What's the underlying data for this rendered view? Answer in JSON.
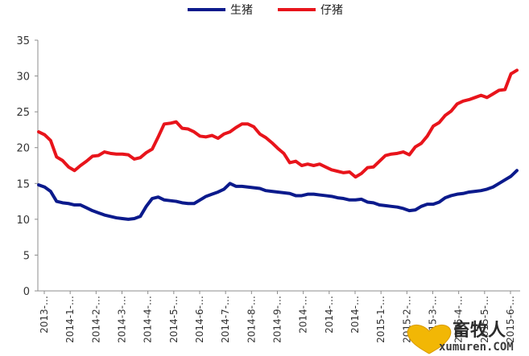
{
  "chart_data": {
    "type": "line",
    "title": "",
    "xlabel": "",
    "ylabel": "",
    "ylim": [
      0,
      35
    ],
    "yticks": [
      0,
      5,
      10,
      15,
      20,
      25,
      30,
      35
    ],
    "grid": false,
    "legend_position": "top",
    "x_tick_labels": [
      "2013-…",
      "2014-1-…",
      "2014-2-…",
      "2014-3-…",
      "2014-4-…",
      "2014-5-…",
      "2014-6-…",
      "2014-7-…",
      "2014-8-…",
      "2014-9-…",
      "2014-…",
      "2014-…",
      "2014-…",
      "2015-1-…",
      "2015-2-…",
      "2015-3-…",
      "2015-4-…",
      "2015-5-…",
      "2015-6-…"
    ],
    "series": [
      {
        "name": "生猪",
        "color": "#0b1a8c",
        "values": [
          14.8,
          14.5,
          13.9,
          12.5,
          12.3,
          12.2,
          12.0,
          12.0,
          11.6,
          11.2,
          10.9,
          10.6,
          10.4,
          10.2,
          10.1,
          10.0,
          10.1,
          10.4,
          11.8,
          12.9,
          13.1,
          12.7,
          12.6,
          12.5,
          12.3,
          12.2,
          12.2,
          12.7,
          13.2,
          13.5,
          13.8,
          14.2,
          15.0,
          14.6,
          14.6,
          14.5,
          14.4,
          14.3,
          14.0,
          13.9,
          13.8,
          13.7,
          13.6,
          13.3,
          13.3,
          13.5,
          13.5,
          13.4,
          13.3,
          13.2,
          13.0,
          12.9,
          12.7,
          12.7,
          12.8,
          12.4,
          12.3,
          12.0,
          11.9,
          11.8,
          11.7,
          11.5,
          11.2,
          11.3,
          11.8,
          12.1,
          12.1,
          12.4,
          13.0,
          13.3,
          13.5,
          13.6,
          13.8,
          13.9,
          14.0,
          14.2,
          14.5,
          15.0,
          15.5,
          16.0,
          16.8
        ]
      },
      {
        "name": "仔猪",
        "color": "#e8141b",
        "values": [
          22.2,
          21.8,
          21.0,
          18.7,
          18.2,
          17.3,
          16.8,
          17.5,
          18.1,
          18.8,
          18.9,
          19.4,
          19.2,
          19.1,
          19.1,
          19.0,
          18.4,
          18.6,
          19.3,
          19.8,
          21.5,
          23.3,
          23.4,
          23.6,
          22.7,
          22.6,
          22.2,
          21.6,
          21.5,
          21.7,
          21.3,
          21.9,
          22.2,
          22.8,
          23.3,
          23.3,
          22.9,
          21.9,
          21.4,
          20.7,
          19.9,
          19.2,
          17.9,
          18.1,
          17.5,
          17.7,
          17.5,
          17.7,
          17.3,
          16.9,
          16.7,
          16.5,
          16.6,
          15.9,
          16.4,
          17.2,
          17.3,
          18.1,
          18.9,
          19.1,
          19.2,
          19.4,
          19.0,
          20.1,
          20.6,
          21.6,
          23.0,
          23.5,
          24.5,
          25.1,
          26.1,
          26.5,
          26.7,
          27.0,
          27.3,
          27.0,
          27.5,
          28.0,
          28.1,
          30.3,
          30.8
        ]
      }
    ]
  },
  "watermark": {
    "cn": "畜牧人",
    "en": "xumuren.COM"
  }
}
